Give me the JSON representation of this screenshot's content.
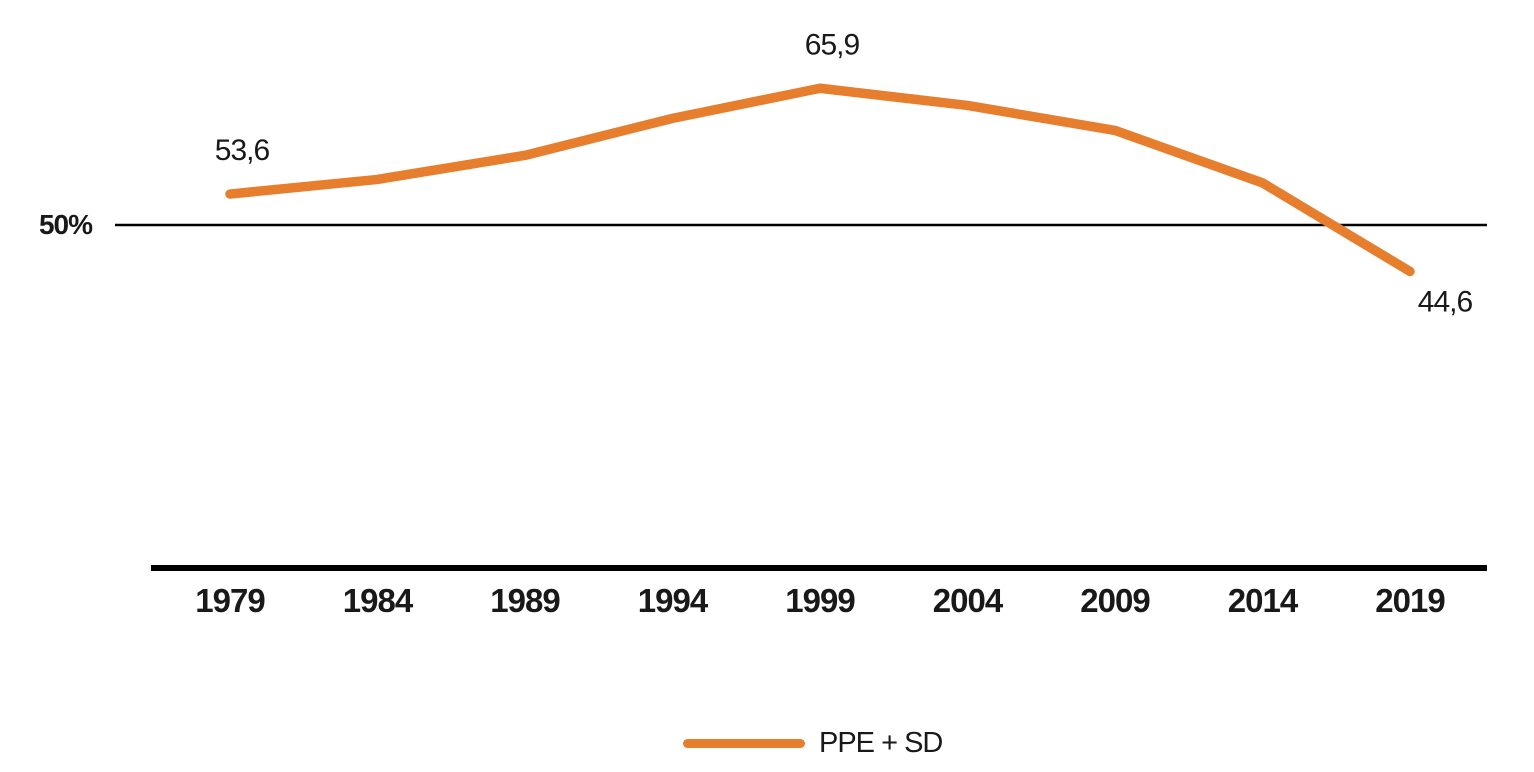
{
  "chart_data": {
    "type": "line",
    "title": "",
    "xlabel": "",
    "ylabel": "",
    "categories": [
      "1979",
      "1984",
      "1989",
      "1994",
      "1999",
      "2004",
      "2009",
      "2014",
      "2019"
    ],
    "series": [
      {
        "name": "PPE + SD",
        "color": "#e67e2e",
        "values": [
          53.6,
          55.3,
          58.1,
          62.4,
          65.9,
          63.9,
          61.0,
          54.9,
          44.6
        ]
      }
    ],
    "annotations": [
      {
        "category": "1979",
        "label": "53,6",
        "position": "above"
      },
      {
        "category": "1999",
        "label": "65,9",
        "position": "above"
      },
      {
        "category": "2019",
        "label": "44,6",
        "position": "below-right"
      }
    ],
    "y_reference_line": {
      "value": 50,
      "label": "50%"
    },
    "ylim": [
      10,
      70
    ],
    "grid": "off",
    "legend_position": "bottom-center",
    "axis_color": "#000000",
    "text_color": "#191919"
  }
}
